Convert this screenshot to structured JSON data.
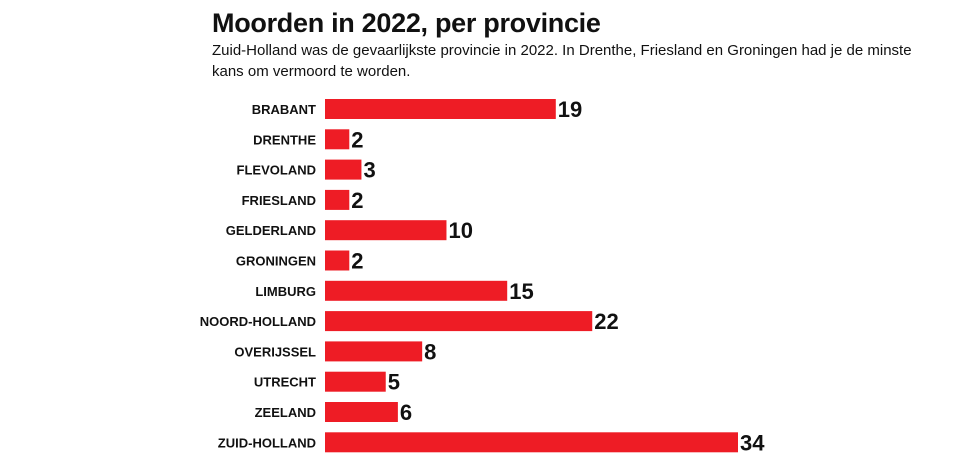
{
  "chart_data": {
    "type": "bar",
    "orientation": "horizontal",
    "title": "Moorden in 2022, per provincie",
    "subtitle": "Zuid-Holland was de gevaarlijkste provincie in 2022. In Drenthe, Friesland en Groningen had je de minste kans om vermoord te worden.",
    "categories": [
      "BRABANT",
      "DRENTHE",
      "FLEVOLAND",
      "FRIESLAND",
      "GELDERLAND",
      "GRONINGEN",
      "LIMBURG",
      "NOORD-HOLLAND",
      "OVERIJSSEL",
      "UTRECHT",
      "ZEELAND",
      "ZUID-HOLLAND"
    ],
    "values": [
      19,
      2,
      3,
      2,
      10,
      2,
      15,
      22,
      8,
      5,
      6,
      34
    ],
    "value_labels": [
      "19",
      "2",
      "3",
      "2",
      "10",
      "2",
      "15",
      "22",
      "8",
      "5",
      "6",
      "34"
    ],
    "xlim": [
      0,
      34
    ],
    "grid": false,
    "legend": "none",
    "bar_color": "#ee1c25"
  }
}
